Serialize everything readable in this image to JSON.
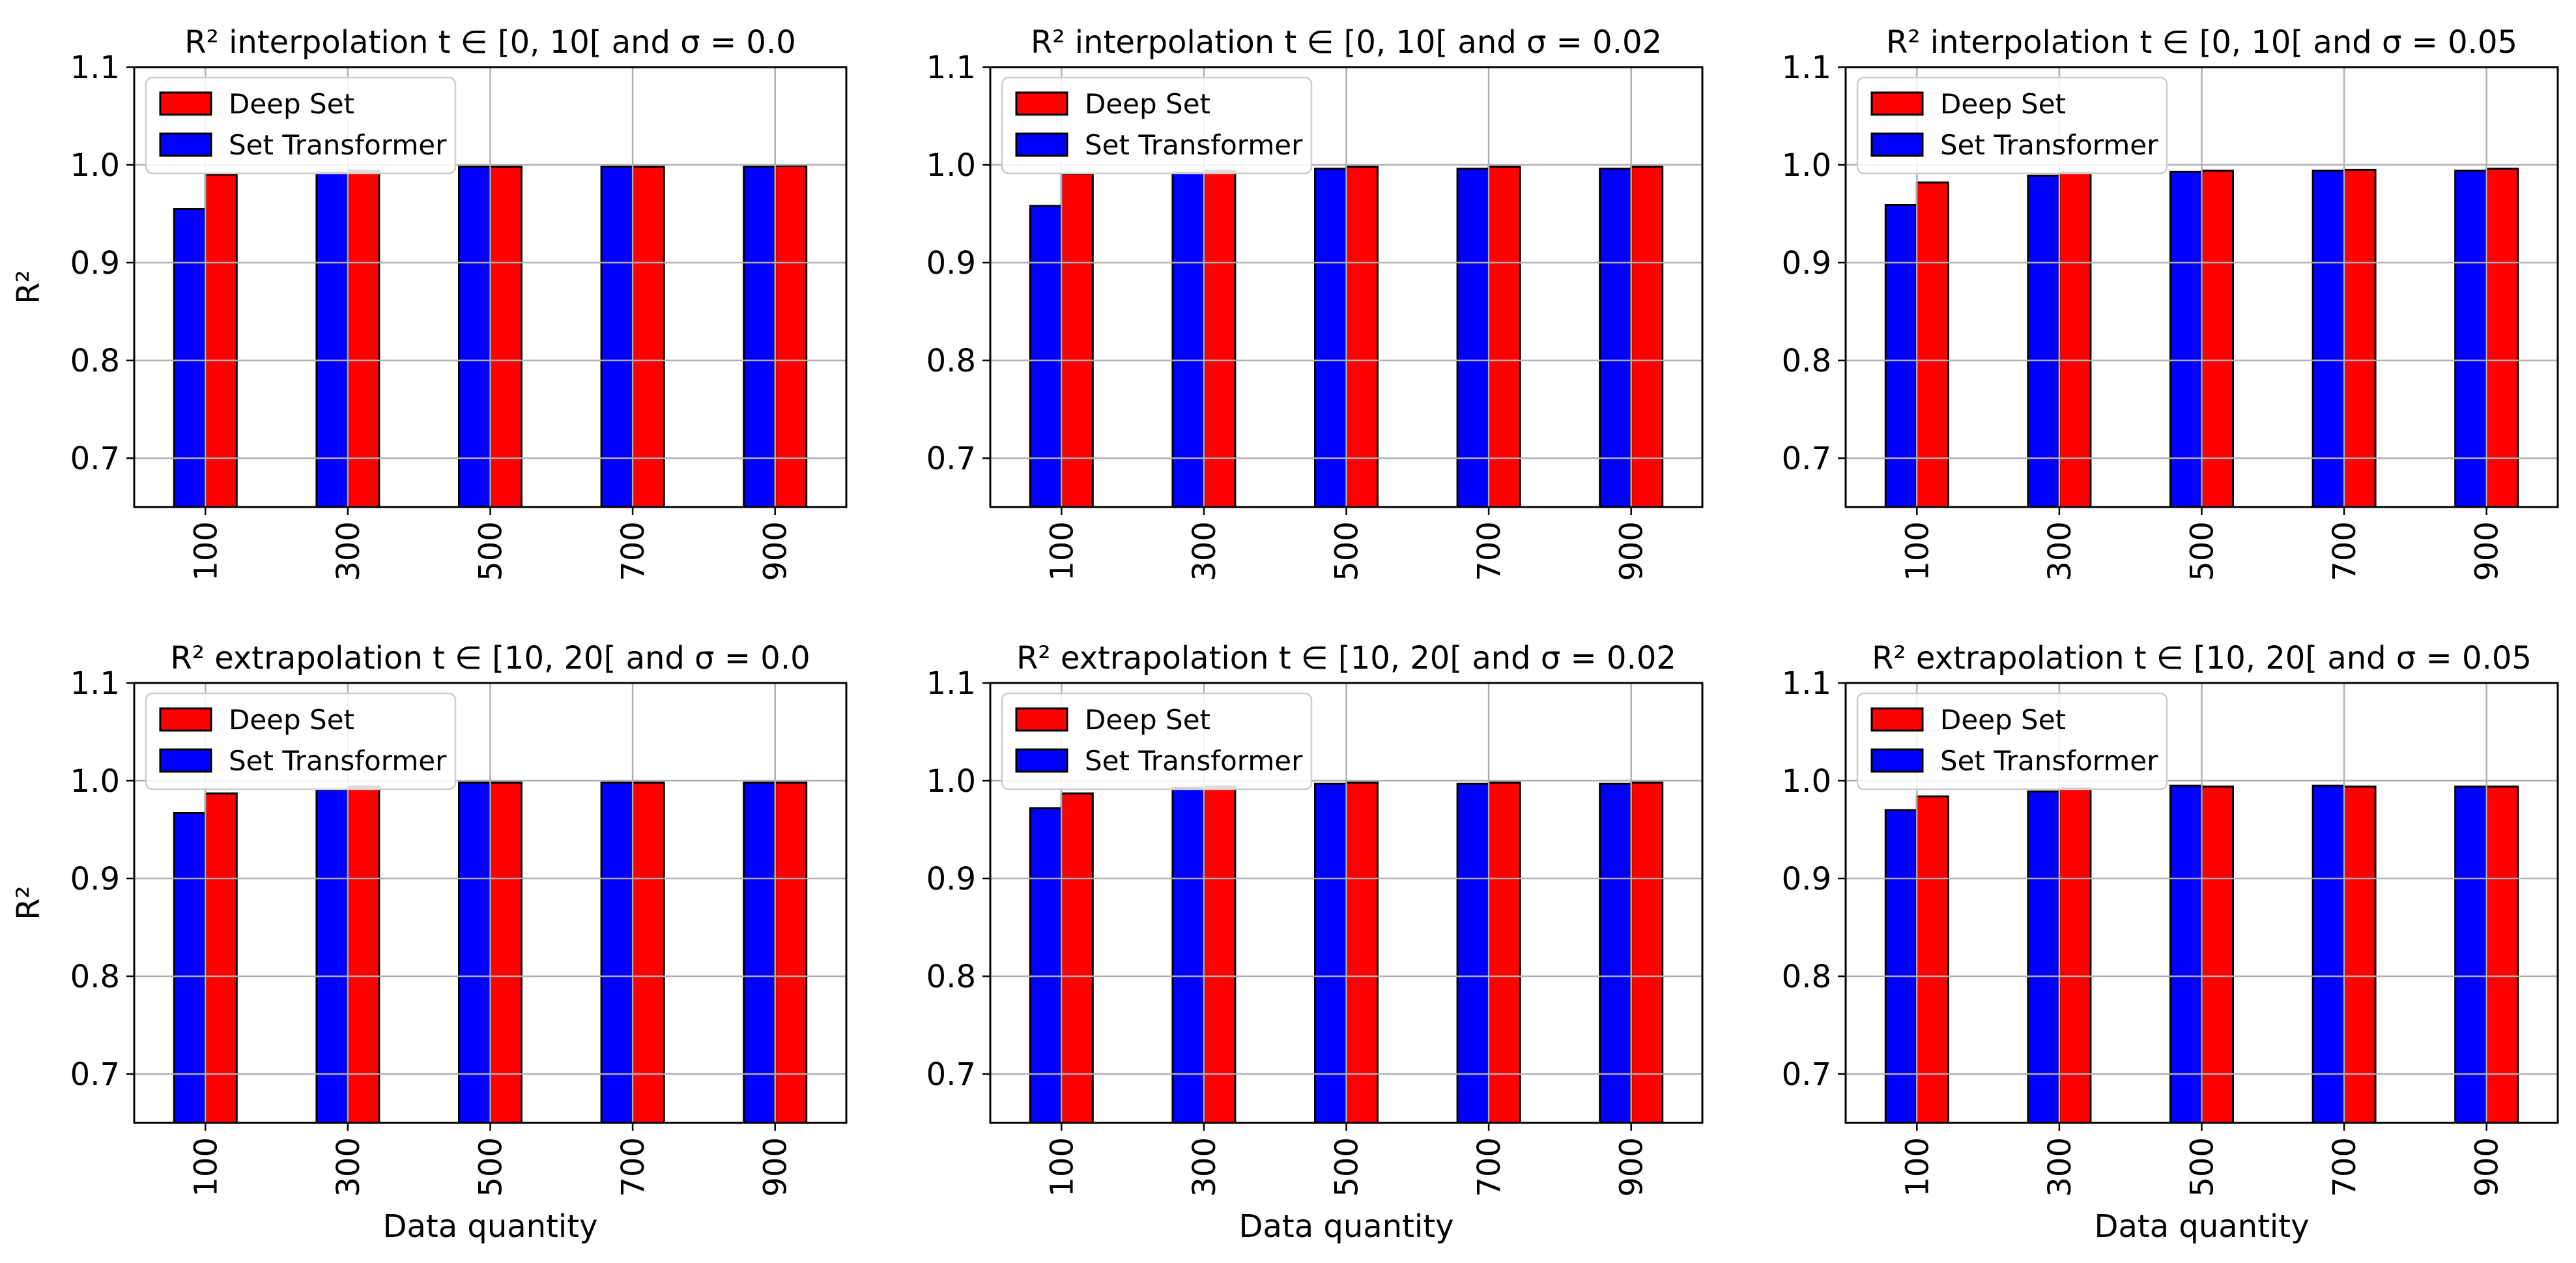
{
  "figure": {
    "y_label": "R²",
    "x_label": "Data quantity",
    "legend": [
      "Deep Set",
      "Set Transformer"
    ]
  },
  "colors": {
    "deep_set": "#ff0000",
    "set_transformer": "#0000ff",
    "grid": "#b0b0b0"
  },
  "chart_data": [
    {
      "type": "bar",
      "title": "R² interpolation t ∈ [0, 10[ and σ = 0.0",
      "categories": [
        "100",
        "300",
        "500",
        "700",
        "900"
      ],
      "series": [
        {
          "name": "Set Transformer",
          "values": [
            0.955,
            0.992,
            0.998,
            0.998,
            0.998
          ]
        },
        {
          "name": "Deep Set",
          "values": [
            0.99,
            0.994,
            0.998,
            0.998,
            0.999
          ]
        }
      ],
      "ylim": [
        0.65,
        1.1
      ],
      "yticks": [
        "0.7",
        "0.8",
        "0.9",
        "1.0",
        "1.1"
      ],
      "ylabel": "R²",
      "xlabel": "",
      "grid": true,
      "legend": "upper left"
    },
    {
      "type": "bar",
      "title": "R² interpolation t ∈ [0, 10[ and σ = 0.02",
      "categories": [
        "100",
        "300",
        "500",
        "700",
        "900"
      ],
      "series": [
        {
          "name": "Set Transformer",
          "values": [
            0.958,
            0.992,
            0.996,
            0.996,
            0.996
          ]
        },
        {
          "name": "Deep Set",
          "values": [
            0.991,
            0.994,
            0.998,
            0.998,
            0.998
          ]
        }
      ],
      "ylim": [
        0.65,
        1.1
      ],
      "yticks": [
        "0.7",
        "0.8",
        "0.9",
        "1.0",
        "1.1"
      ],
      "ylabel": "",
      "xlabel": "",
      "grid": true,
      "legend": "upper left"
    },
    {
      "type": "bar",
      "title": "R² interpolation t ∈ [0, 10[ and σ = 0.05",
      "categories": [
        "100",
        "300",
        "500",
        "700",
        "900"
      ],
      "series": [
        {
          "name": "Set Transformer",
          "values": [
            0.959,
            0.989,
            0.993,
            0.994,
            0.994
          ]
        },
        {
          "name": "Deep Set",
          "values": [
            0.982,
            0.992,
            0.994,
            0.995,
            0.996
          ]
        }
      ],
      "ylim": [
        0.65,
        1.1
      ],
      "yticks": [
        "0.7",
        "0.8",
        "0.9",
        "1.0",
        "1.1"
      ],
      "ylabel": "",
      "xlabel": "",
      "grid": true,
      "legend": "upper left"
    },
    {
      "type": "bar",
      "title": "R² extrapolation t ∈ [10, 20[ and σ = 0.0",
      "categories": [
        "100",
        "300",
        "500",
        "700",
        "900"
      ],
      "series": [
        {
          "name": "Set Transformer",
          "values": [
            0.967,
            0.991,
            0.998,
            0.998,
            0.998
          ]
        },
        {
          "name": "Deep Set",
          "values": [
            0.987,
            0.994,
            0.998,
            0.998,
            0.998
          ]
        }
      ],
      "ylim": [
        0.65,
        1.1
      ],
      "yticks": [
        "0.7",
        "0.8",
        "0.9",
        "1.0",
        "1.1"
      ],
      "ylabel": "R²",
      "xlabel": "Data quantity",
      "grid": true,
      "legend": "upper left"
    },
    {
      "type": "bar",
      "title": "R² extrapolation t ∈ [10, 20[ and σ = 0.02",
      "categories": [
        "100",
        "300",
        "500",
        "700",
        "900"
      ],
      "series": [
        {
          "name": "Set Transformer",
          "values": [
            0.972,
            0.993,
            0.997,
            0.997,
            0.997
          ]
        },
        {
          "name": "Deep Set",
          "values": [
            0.987,
            0.994,
            0.998,
            0.998,
            0.998
          ]
        }
      ],
      "ylim": [
        0.65,
        1.1
      ],
      "yticks": [
        "0.7",
        "0.8",
        "0.9",
        "1.0",
        "1.1"
      ],
      "ylabel": "",
      "xlabel": "Data quantity",
      "grid": true,
      "legend": "upper left"
    },
    {
      "type": "bar",
      "title": "R² extrapolation t ∈ [10, 20[ and σ = 0.05",
      "categories": [
        "100",
        "300",
        "500",
        "700",
        "900"
      ],
      "series": [
        {
          "name": "Set Transformer",
          "values": [
            0.97,
            0.989,
            0.995,
            0.995,
            0.994
          ]
        },
        {
          "name": "Deep Set",
          "values": [
            0.984,
            0.992,
            0.994,
            0.994,
            0.994
          ]
        }
      ],
      "ylim": [
        0.65,
        1.1
      ],
      "yticks": [
        "0.7",
        "0.8",
        "0.9",
        "1.0",
        "1.1"
      ],
      "ylabel": "",
      "xlabel": "Data quantity",
      "grid": true,
      "legend": "upper left"
    }
  ]
}
